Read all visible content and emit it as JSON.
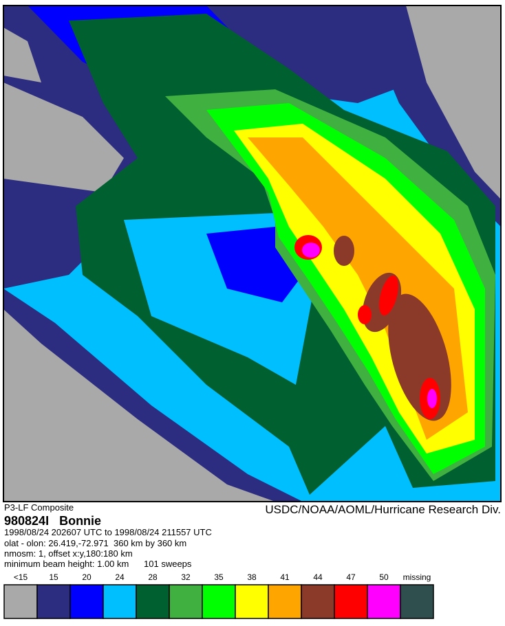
{
  "header": {
    "subtitle": "P3-LF Composite",
    "credit": "USDC/NOAA/AOML/Hurricane Research Div.",
    "storm": "980824I   Bonnie",
    "lines": [
      "1998/08/24 202607 UTC to 1998/08/24 211557 UTC",
      "olat - olon: 26.419,-72.971  360 km by 360 km",
      "nmosm: 1, offset x:y,180:180 km",
      "minimum beam height: 1.00 km      101 sweeps"
    ]
  },
  "legend": {
    "items": [
      {
        "label": "<15",
        "color": "#a9a9a9"
      },
      {
        "label": "15",
        "color": "#2c2c80"
      },
      {
        "label": "20",
        "color": "#0000ff"
      },
      {
        "label": "24",
        "color": "#00bfff"
      },
      {
        "label": "28",
        "color": "#006030"
      },
      {
        "label": "32",
        "color": "#40b040"
      },
      {
        "label": "35",
        "color": "#00ff00"
      },
      {
        "label": "38",
        "color": "#ffff00"
      },
      {
        "label": "41",
        "color": "#ffa500"
      },
      {
        "label": "44",
        "color": "#8b3a2a"
      },
      {
        "label": "47",
        "color": "#ff0000"
      },
      {
        "label": "50",
        "color": "#ff00ff"
      },
      {
        "label": "missing",
        "color": "#2f4f4f"
      }
    ]
  }
}
